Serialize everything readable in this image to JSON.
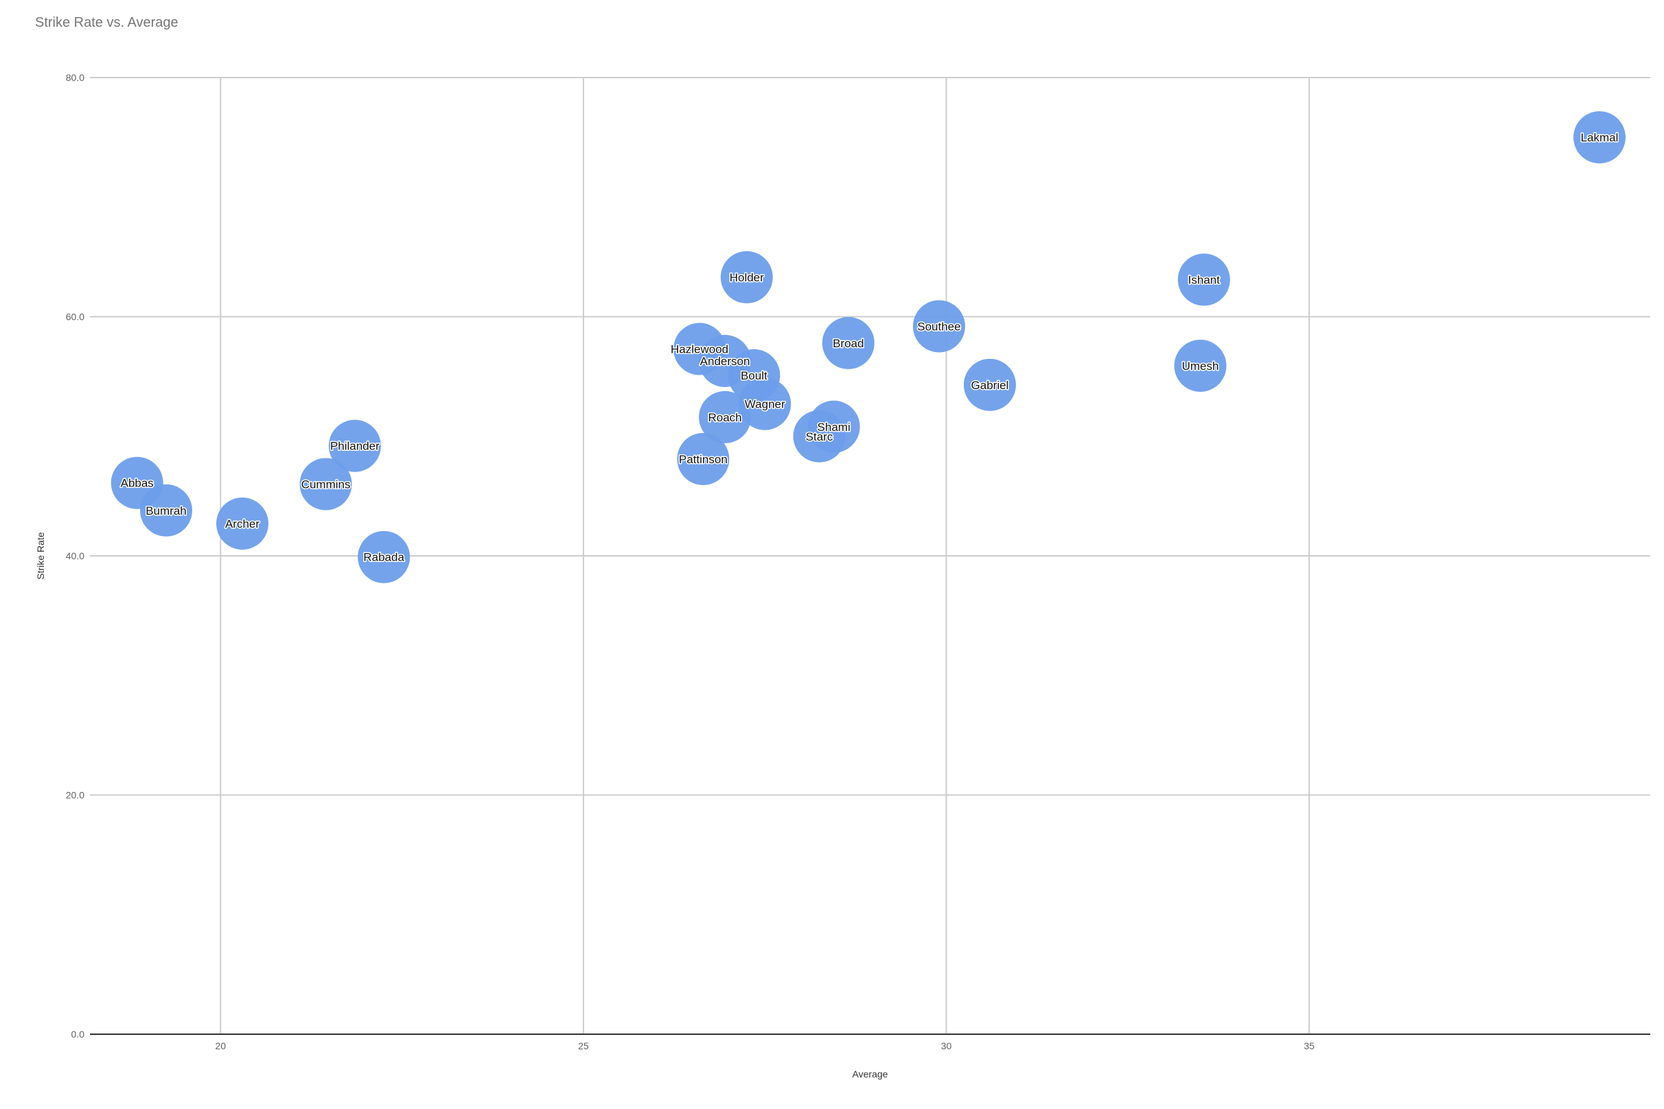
{
  "chart_data": {
    "type": "scatter",
    "title": "Strike Rate vs. Average",
    "xlabel": "Average",
    "ylabel": "Strike Rate",
    "xlim": [
      18.2,
      39.7
    ],
    "ylim": [
      0,
      80
    ],
    "x_ticks": [
      20,
      25,
      30,
      35
    ],
    "x_tick_labels": [
      "20",
      "25",
      "30",
      "35"
    ],
    "y_ticks": [
      0,
      20,
      40,
      60,
      80
    ],
    "y_tick_labels": [
      "0.0",
      "20.0",
      "40.0",
      "60.0",
      "80.0"
    ],
    "grid": true,
    "legend": "none",
    "series": [
      {
        "color": "#6d9eeb",
        "points": [
          {
            "label": "Lakmal",
            "x": 39.0,
            "y": 75.0
          },
          {
            "label": "Holder",
            "x": 27.25,
            "y": 63.3
          },
          {
            "label": "Ishant",
            "x": 33.55,
            "y": 63.1
          },
          {
            "label": "Southee",
            "x": 29.9,
            "y": 59.2
          },
          {
            "label": "Broad",
            "x": 28.65,
            "y": 57.8
          },
          {
            "label": "Hazlewood",
            "x": 26.6,
            "y": 57.3
          },
          {
            "label": "Anderson",
            "x": 26.95,
            "y": 56.3
          },
          {
            "label": "Umesh",
            "x": 33.5,
            "y": 55.9
          },
          {
            "label": "Boult",
            "x": 27.35,
            "y": 55.1
          },
          {
            "label": "Gabriel",
            "x": 30.6,
            "y": 54.3
          },
          {
            "label": "Wagner",
            "x": 27.5,
            "y": 52.7
          },
          {
            "label": "Roach",
            "x": 26.95,
            "y": 51.6
          },
          {
            "label": "Shami",
            "x": 28.45,
            "y": 50.8
          },
          {
            "label": "Starc",
            "x": 28.25,
            "y": 50.0
          },
          {
            "label": "Philander",
            "x": 21.85,
            "y": 49.2
          },
          {
            "label": "Pattinson",
            "x": 26.65,
            "y": 48.1
          },
          {
            "label": "Abbas",
            "x": 18.85,
            "y": 46.1
          },
          {
            "label": "Cummins",
            "x": 21.45,
            "y": 46.0
          },
          {
            "label": "Bumrah",
            "x": 19.25,
            "y": 43.8
          },
          {
            "label": "Archer",
            "x": 20.3,
            "y": 42.7
          },
          {
            "label": "Rabada",
            "x": 22.25,
            "y": 39.9
          }
        ]
      }
    ]
  }
}
